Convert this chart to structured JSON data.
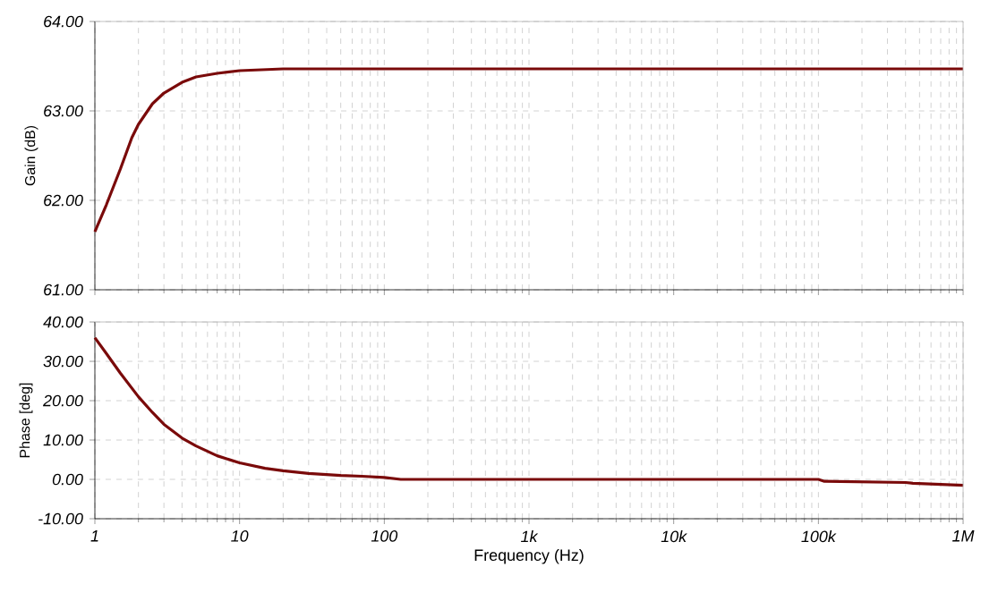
{
  "chart_data": [
    {
      "type": "line",
      "ylabel": "Gain (dB)",
      "log": "x",
      "grid": true,
      "tick_labels": "y",
      "xlim": [
        1,
        1000000
      ],
      "ylim": [
        61,
        64
      ],
      "xticks": [
        {
          "value": 1,
          "label": null
        },
        {
          "value": 10,
          "label": null
        },
        {
          "value": 100,
          "label": null
        },
        {
          "value": 1000,
          "label": null
        },
        {
          "value": 10000,
          "label": null
        },
        {
          "value": 100000,
          "label": null
        },
        {
          "value": 1000000,
          "label": null
        }
      ],
      "yticks": [
        {
          "value": 61,
          "label": "61.00"
        },
        {
          "value": 62,
          "label": "62.00"
        },
        {
          "value": 63,
          "label": "63.00"
        },
        {
          "value": 64,
          "label": "64.00"
        }
      ],
      "series": [
        {
          "color": "#7a0a0a",
          "x": [
            1,
            1.2,
            1.5,
            1.8,
            2,
            2.5,
            3,
            4,
            5,
            7,
            10,
            20,
            50,
            100,
            1000,
            10000,
            100000,
            1000000
          ],
          "values": [
            61.65,
            61.95,
            62.35,
            62.7,
            62.85,
            63.08,
            63.2,
            63.32,
            63.38,
            63.42,
            63.45,
            63.47,
            63.47,
            63.47,
            63.47,
            63.47,
            63.47,
            63.47
          ]
        }
      ]
    },
    {
      "type": "line",
      "xlabel": "Frequency (Hz)",
      "ylabel": "Phase [deg]",
      "log": "x",
      "grid": true,
      "xlim": [
        1,
        1000000
      ],
      "ylim": [
        -10,
        40
      ],
      "xticks": [
        {
          "value": 1,
          "label": "1"
        },
        {
          "value": 10,
          "label": "10"
        },
        {
          "value": 100,
          "label": "100"
        },
        {
          "value": 1000,
          "label": "1k"
        },
        {
          "value": 10000,
          "label": "10k"
        },
        {
          "value": 100000,
          "label": "100k"
        },
        {
          "value": 1000000,
          "label": "1M"
        }
      ],
      "yticks": [
        {
          "value": -10,
          "label": "-10.00"
        },
        {
          "value": 0,
          "label": "0.00"
        },
        {
          "value": 10,
          "label": "10.00"
        },
        {
          "value": 20,
          "label": "20.00"
        },
        {
          "value": 30,
          "label": "30.00"
        },
        {
          "value": 40,
          "label": "40.00"
        }
      ],
      "series": [
        {
          "color": "#7a0a0a",
          "x": [
            1,
            1.2,
            1.5,
            2,
            2.5,
            3,
            4,
            5,
            7,
            10,
            15,
            20,
            30,
            50,
            70,
            100,
            130,
            1000,
            10000,
            100000,
            110000,
            400000,
            450000,
            1000000
          ],
          "values": [
            36,
            32,
            27,
            21,
            17,
            14,
            10.5,
            8.5,
            6,
            4.2,
            2.8,
            2.2,
            1.5,
            1,
            0.8,
            0.5,
            0,
            0,
            0,
            0,
            -0.5,
            -0.8,
            -1,
            -1.5
          ]
        }
      ]
    }
  ]
}
